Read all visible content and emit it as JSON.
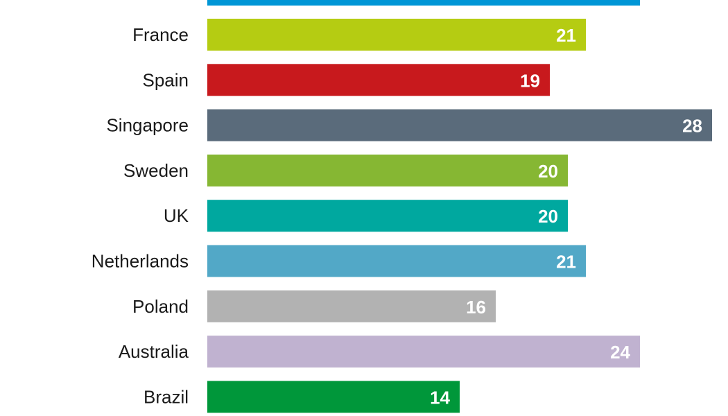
{
  "chart_data": {
    "type": "bar",
    "orientation": "horizontal",
    "title": "",
    "xlabel": "",
    "ylabel": "",
    "grid": false,
    "legend": "none",
    "xlim": [
      0,
      28
    ],
    "partial_top_bar": {
      "value": 24,
      "color": "#0096D6"
    },
    "categories": [
      "France",
      "Spain",
      "Singapore",
      "Sweden",
      "UK",
      "Netherlands",
      "Poland",
      "Australia",
      "Brazil"
    ],
    "values": [
      21,
      19,
      28,
      20,
      20,
      21,
      16,
      24,
      14
    ],
    "colors": [
      "#B5CC12",
      "#C8191D",
      "#5A6B7B",
      "#86B733",
      "#00A89F",
      "#52A8C7",
      "#B2B2B2",
      "#C0B2D0",
      "#00973A"
    ]
  }
}
